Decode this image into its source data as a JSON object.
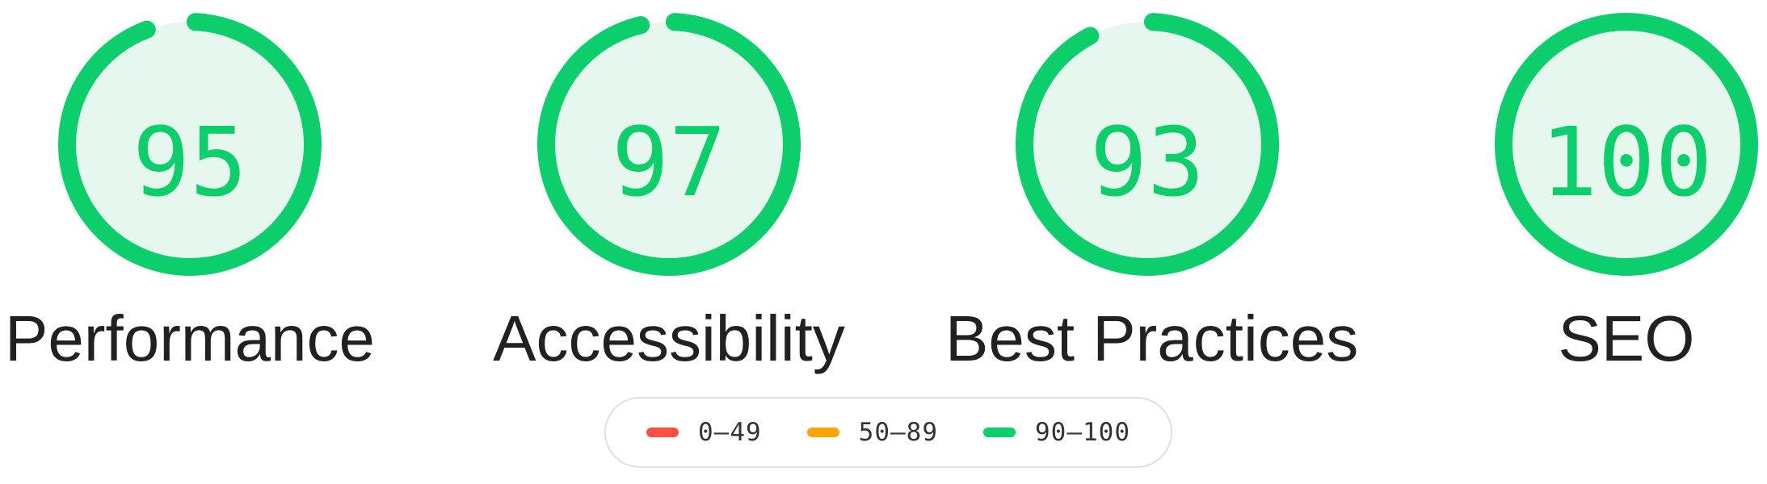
{
  "colors": {
    "pass": "#0cce6b",
    "pass_bg": "#e6f8ee",
    "average": "#ffa400",
    "fail": "#ff4e42"
  },
  "gauges": [
    {
      "score": 95,
      "score_text": "95",
      "label": "Performance"
    },
    {
      "score": 97,
      "score_text": "97",
      "label": "Accessibility"
    },
    {
      "score": 93,
      "score_text": "93",
      "label": "Best Practices"
    },
    {
      "score": 100,
      "score_text": "100",
      "label": "SEO"
    }
  ],
  "legend": [
    {
      "range": "0–49",
      "color": "#ff4e42"
    },
    {
      "range": "50–89",
      "color": "#ffa400"
    },
    {
      "range": "90–100",
      "color": "#0cce6b"
    }
  ]
}
